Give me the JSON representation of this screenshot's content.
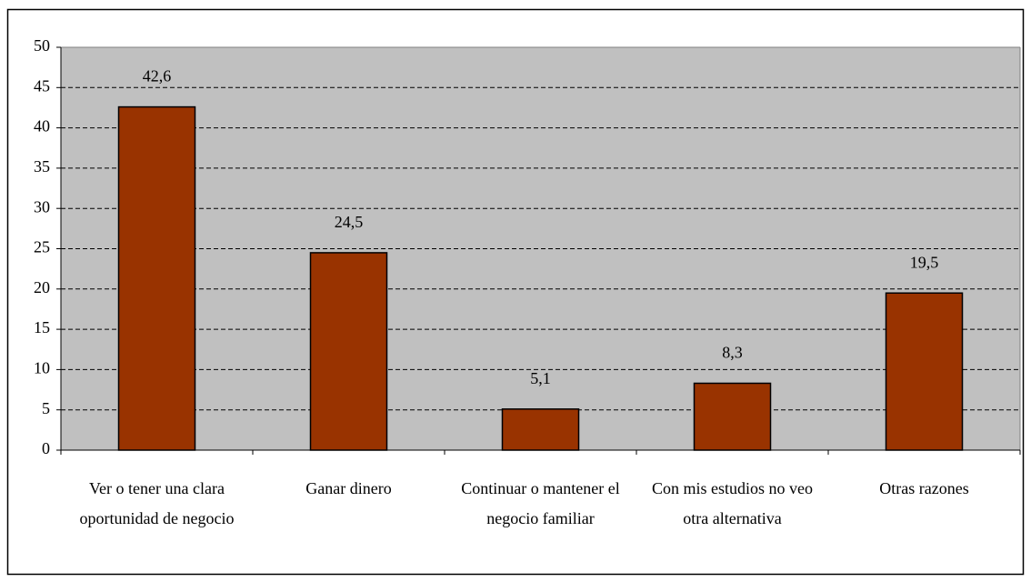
{
  "chart_data": {
    "type": "bar",
    "categories": [
      "Ver o tener una clara oportunidad de negocio",
      "Ganar dinero",
      "Continuar o mantener el negocio familiar",
      "Con mis estudios no veo otra alternativa",
      "Otras razones"
    ],
    "values": [
      42.6,
      24.5,
      5.1,
      8.3,
      19.5
    ],
    "value_labels": [
      "42,6",
      "24,5",
      "5,1",
      "8,3",
      "19,5"
    ],
    "color": "#993300",
    "ylim": [
      0,
      50
    ],
    "yticks": [
      0,
      5,
      10,
      15,
      20,
      25,
      30,
      35,
      40,
      45,
      50
    ],
    "grid": true
  }
}
